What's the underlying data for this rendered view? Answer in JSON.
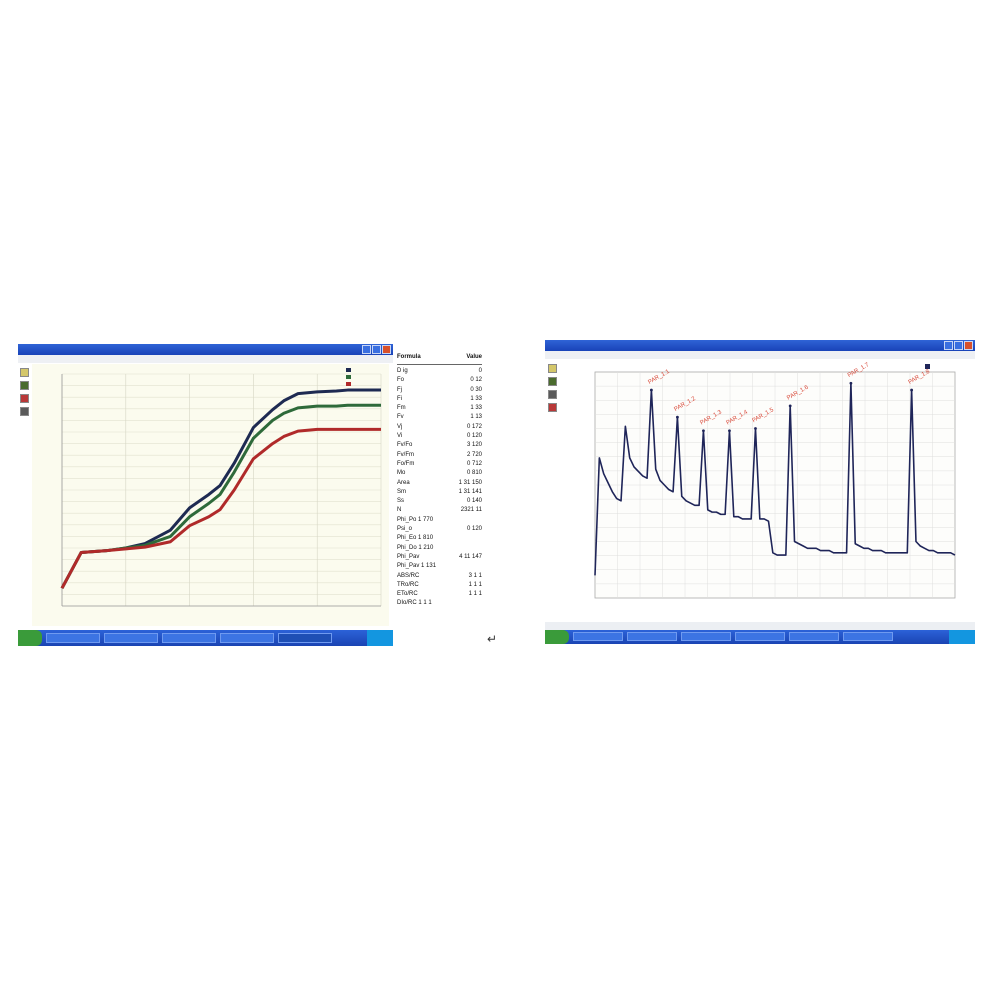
{
  "params": {
    "header_name": "Formula",
    "header_value": "Value",
    "rows": [
      {
        "name": "D ig",
        "value": "0"
      },
      {
        "name": "Fo",
        "value": "0 12"
      },
      {
        "name": "Fj",
        "value": "0 30"
      },
      {
        "name": "Fi",
        "value": "1 33"
      },
      {
        "name": "Fm",
        "value": "1 33"
      },
      {
        "name": "Fv",
        "value": "1 13"
      },
      {
        "name": "Vj",
        "value": "0 172"
      },
      {
        "name": "Vi",
        "value": "0 120"
      },
      {
        "name": "Fv/Fo",
        "value": "3 120"
      },
      {
        "name": "Fv/Fm",
        "value": "2 720"
      },
      {
        "name": "Fo/Fm",
        "value": "0 712"
      },
      {
        "name": "Mo",
        "value": "0 810"
      },
      {
        "name": "Area",
        "value": "1 31 150"
      },
      {
        "name": "Sm",
        "value": "1 31 141"
      },
      {
        "name": "Ss",
        "value": "0 140"
      },
      {
        "name": "N",
        "value": "2321 11"
      },
      {
        "name": "Phi_Po 1 770",
        "value": ""
      },
      {
        "name": "Psi_o",
        "value": "0 120"
      },
      {
        "name": "Phi_Eo 1 810",
        "value": ""
      },
      {
        "name": "Phi_Do 1 210",
        "value": ""
      },
      {
        "name": "Phi_Pav",
        "value": "4 11 147"
      },
      {
        "name": "Phi_Pav 1 131",
        "value": ""
      },
      {
        "name": "ABS/RC",
        "value": "3 1 1"
      },
      {
        "name": "TRo/RC",
        "value": "1 1 1"
      },
      {
        "name": "ETo/RC",
        "value": "1 1 1"
      },
      {
        "name": "DIo/RC 1 1 1",
        "value": ""
      }
    ]
  },
  "chart_data": [
    {
      "type": "line",
      "x_scale": "log",
      "x": [
        0.01,
        0.02,
        0.05,
        0.1,
        0.2,
        0.5,
        1,
        2,
        3,
        5,
        10,
        20,
        30,
        50,
        100,
        200,
        300,
        500,
        1000
      ],
      "series": [
        {
          "color": "#1e2a52",
          "values": [
            100,
            140,
            142,
            145,
            150,
            165,
            190,
            205,
            215,
            240,
            280,
            300,
            310,
            318,
            320,
            321,
            322,
            322,
            322
          ]
        },
        {
          "color": "#2e6a3a",
          "values": [
            100,
            140,
            142,
            145,
            148,
            158,
            180,
            195,
            205,
            230,
            268,
            288,
            296,
            302,
            304,
            304,
            305,
            305,
            305
          ]
        },
        {
          "color": "#b02a2a",
          "values": [
            100,
            140,
            142,
            144,
            146,
            152,
            170,
            180,
            188,
            210,
            245,
            262,
            270,
            276,
            278,
            278,
            278,
            278,
            278
          ]
        }
      ]
    },
    {
      "type": "line",
      "annotations": [
        "PAR_1.1",
        "PAR_1.2",
        "PAR_1.3",
        "PAR_1.4",
        "PAR_1.5",
        "PAR_1.6",
        "PAR_1.7",
        "PAR_1.8"
      ],
      "series": [
        {
          "color": "#1f2559",
          "values": [
            [
              0,
              0.1
            ],
            [
              1,
              0.62
            ],
            [
              2,
              0.55
            ],
            [
              3,
              0.51
            ],
            [
              4,
              0.47
            ],
            [
              5,
              0.44
            ],
            [
              6,
              0.43
            ],
            [
              7,
              0.76
            ],
            [
              8,
              0.62
            ],
            [
              9,
              0.58
            ],
            [
              10,
              0.56
            ],
            [
              11,
              0.54
            ],
            [
              12,
              0.53
            ],
            [
              13,
              0.92
            ],
            [
              14,
              0.57
            ],
            [
              15,
              0.52
            ],
            [
              16,
              0.5
            ],
            [
              17,
              0.48
            ],
            [
              18,
              0.47
            ],
            [
              19,
              0.8
            ],
            [
              20,
              0.45
            ],
            [
              21,
              0.43
            ],
            [
              22,
              0.42
            ],
            [
              23,
              0.41
            ],
            [
              24,
              0.41
            ],
            [
              25,
              0.74
            ],
            [
              26,
              0.39
            ],
            [
              27,
              0.38
            ],
            [
              28,
              0.38
            ],
            [
              29,
              0.37
            ],
            [
              30,
              0.37
            ],
            [
              31,
              0.74
            ],
            [
              32,
              0.36
            ],
            [
              33,
              0.36
            ],
            [
              34,
              0.35
            ],
            [
              35,
              0.35
            ],
            [
              36,
              0.35
            ],
            [
              37,
              0.75
            ],
            [
              38,
              0.35
            ],
            [
              39,
              0.35
            ],
            [
              40,
              0.34
            ],
            [
              41,
              0.2
            ],
            [
              42,
              0.19
            ],
            [
              43,
              0.19
            ],
            [
              44,
              0.19
            ],
            [
              45,
              0.85
            ],
            [
              46,
              0.25
            ],
            [
              47,
              0.24
            ],
            [
              48,
              0.23
            ],
            [
              49,
              0.22
            ],
            [
              50,
              0.22
            ],
            [
              51,
              0.22
            ],
            [
              52,
              0.21
            ],
            [
              53,
              0.21
            ],
            [
              54,
              0.21
            ],
            [
              55,
              0.2
            ],
            [
              56,
              0.2
            ],
            [
              57,
              0.2
            ],
            [
              58,
              0.2
            ],
            [
              59,
              0.95
            ],
            [
              60,
              0.24
            ],
            [
              61,
              0.23
            ],
            [
              62,
              0.22
            ],
            [
              63,
              0.22
            ],
            [
              64,
              0.21
            ],
            [
              65,
              0.21
            ],
            [
              66,
              0.21
            ],
            [
              67,
              0.2
            ],
            [
              68,
              0.2
            ],
            [
              69,
              0.2
            ],
            [
              70,
              0.2
            ],
            [
              71,
              0.2
            ],
            [
              72,
              0.2
            ],
            [
              73,
              0.92
            ],
            [
              74,
              0.25
            ],
            [
              75,
              0.23
            ],
            [
              76,
              0.22
            ],
            [
              77,
              0.21
            ],
            [
              78,
              0.21
            ],
            [
              79,
              0.2
            ],
            [
              80,
              0.2
            ],
            [
              81,
              0.2
            ],
            [
              82,
              0.2
            ],
            [
              83,
              0.19
            ]
          ]
        }
      ]
    }
  ]
}
